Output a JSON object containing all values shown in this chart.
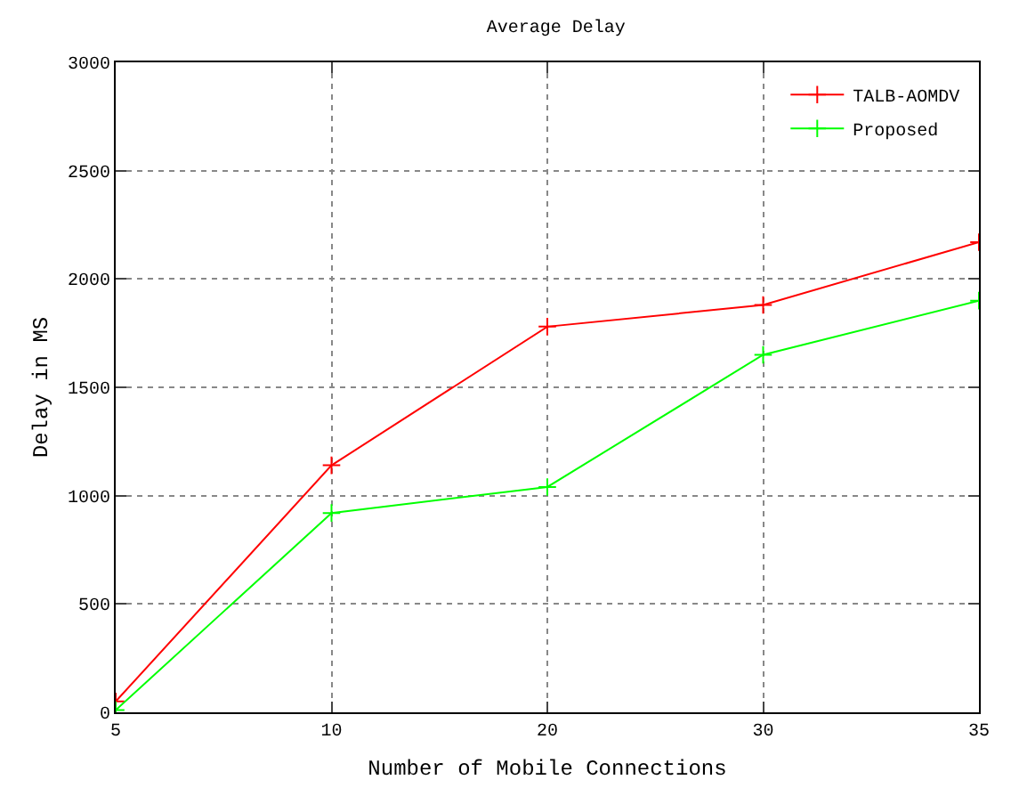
{
  "chart_data": {
    "type": "line",
    "title": "Average Delay",
    "xlabel": "Number of Mobile Connections",
    "ylabel": "Delay in MS",
    "categories": [
      "5",
      "10",
      "20",
      "30",
      "35"
    ],
    "series": [
      {
        "name": "TALB-AOMDV",
        "color": "#ff0000",
        "values": [
          50,
          1140,
          1780,
          1880,
          2170
        ]
      },
      {
        "name": "Proposed",
        "color": "#00ff00",
        "values": [
          10,
          920,
          1040,
          1650,
          1900
        ]
      }
    ],
    "ylim": [
      0,
      3000
    ],
    "yticks": [
      0,
      500,
      1000,
      1500,
      2000,
      2500,
      3000
    ],
    "grid": true,
    "legend": "top right",
    "marker": "cross",
    "line_style": "solid"
  }
}
